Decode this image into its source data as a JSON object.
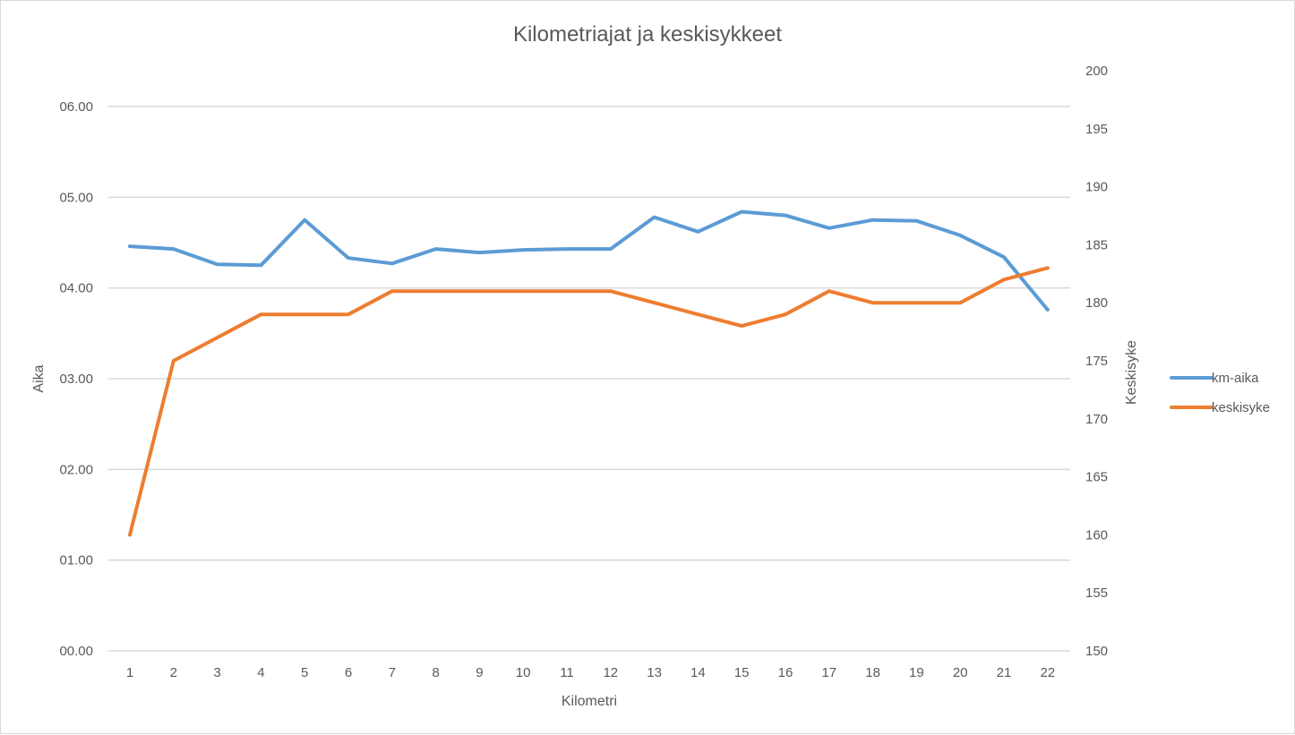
{
  "chart_data": {
    "type": "line",
    "title": "Kilometriajat ja keskisykkeet",
    "xlabel": "Kilometri",
    "ylabel": "Aika",
    "y2label": "Keskisyke",
    "categories": [
      "1",
      "2",
      "3",
      "4",
      "5",
      "6",
      "7",
      "8",
      "9",
      "10",
      "11",
      "12",
      "13",
      "14",
      "15",
      "16",
      "17",
      "18",
      "19",
      "20",
      "21",
      "22"
    ],
    "y_ticks": [
      "00.00",
      "01.00",
      "02.00",
      "03.00",
      "04.00",
      "05.00",
      "06.00"
    ],
    "ylim": [
      0,
      6
    ],
    "y2_ticks": [
      "150",
      "155",
      "160",
      "165",
      "170",
      "175",
      "180",
      "185",
      "190",
      "195",
      "200"
    ],
    "y2lim": [
      150,
      200
    ],
    "grid": true,
    "legend_position": "right",
    "series": [
      {
        "name": "km-aika",
        "axis": "left",
        "color": "#5b9bd5",
        "values": [
          4.46,
          4.43,
          4.26,
          4.25,
          4.75,
          4.33,
          4.27,
          4.43,
          4.39,
          4.42,
          4.43,
          4.43,
          4.78,
          4.62,
          4.84,
          4.8,
          4.66,
          4.75,
          4.74,
          4.58,
          4.34,
          3.76
        ]
      },
      {
        "name": "keskisyke",
        "axis": "right",
        "color": "#ed7d31",
        "values": [
          160,
          175,
          177,
          179,
          179,
          179,
          181,
          181,
          181,
          181,
          181,
          181,
          180,
          179,
          178,
          179,
          181,
          180,
          180,
          180,
          182,
          183
        ]
      }
    ]
  }
}
